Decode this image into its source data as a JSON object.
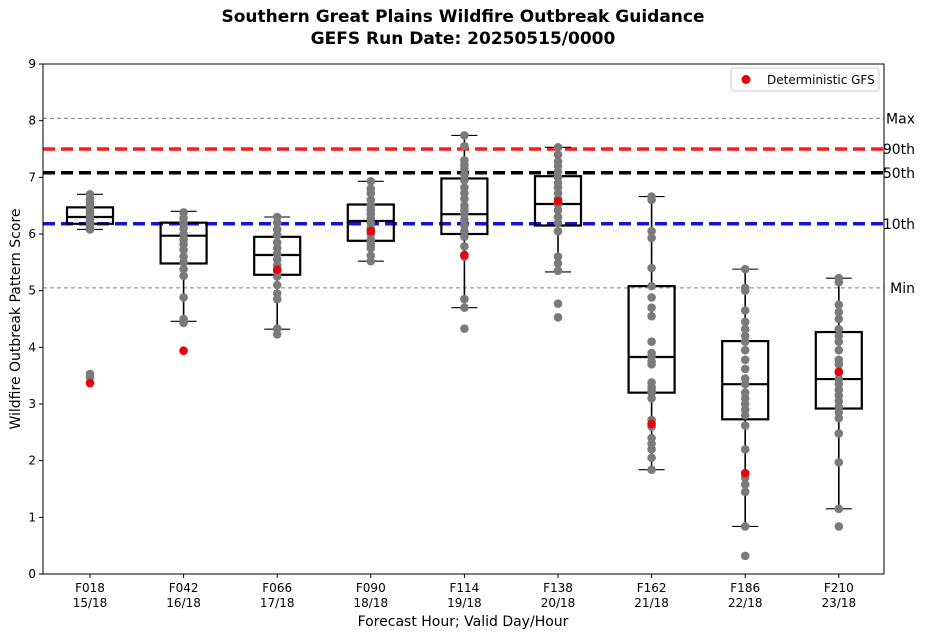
{
  "chart_data": {
    "type": "box",
    "title": "Southern Great Plains Wildfire Outbreak Guidance",
    "subtitle": "GEFS Run Date: 20250515/0000",
    "xlabel": "Forecast Hour; Valid Day/Hour",
    "ylabel": "Wildfire Outbreak Pattern Score",
    "ylim": [
      0,
      9
    ],
    "yticks": [
      "0",
      "1",
      "2",
      "3",
      "4",
      "5",
      "6",
      "7",
      "8",
      "9"
    ],
    "grid": false,
    "legend": {
      "placement": "top-right",
      "entries": [
        {
          "label": "Deterministic GFS",
          "color": "#e8000b"
        }
      ]
    },
    "categories": [
      {
        "hour": "F018",
        "valid": "15/18"
      },
      {
        "hour": "F042",
        "valid": "16/18"
      },
      {
        "hour": "F066",
        "valid": "17/18"
      },
      {
        "hour": "F090",
        "valid": "18/18"
      },
      {
        "hour": "F114",
        "valid": "19/18"
      },
      {
        "hour": "F138",
        "valid": "20/18"
      },
      {
        "hour": "F162",
        "valid": "21/18"
      },
      {
        "hour": "F186",
        "valid": "22/18"
      },
      {
        "hour": "F210",
        "valid": "23/18"
      }
    ],
    "boxes": [
      {
        "whisker_low": 6.08,
        "q1": 6.18,
        "median": 6.3,
        "q3": 6.47,
        "whisker_high": 6.7
      },
      {
        "whisker_low": 4.46,
        "q1": 5.48,
        "median": 5.97,
        "q3": 6.2,
        "whisker_high": 6.4
      },
      {
        "whisker_low": 4.32,
        "q1": 5.28,
        "median": 5.63,
        "q3": 5.95,
        "whisker_high": 6.3
      },
      {
        "whisker_low": 5.52,
        "q1": 5.88,
        "median": 6.23,
        "q3": 6.52,
        "whisker_high": 6.93
      },
      {
        "whisker_low": 4.7,
        "q1": 6.0,
        "median": 6.35,
        "q3": 6.98,
        "whisker_high": 7.74
      },
      {
        "whisker_low": 5.33,
        "q1": 6.15,
        "median": 6.53,
        "q3": 7.02,
        "whisker_high": 7.53
      },
      {
        "whisker_low": 1.84,
        "q1": 3.2,
        "median": 3.83,
        "q3": 5.08,
        "whisker_high": 6.66
      },
      {
        "whisker_low": 0.84,
        "q1": 2.73,
        "median": 3.35,
        "q3": 4.11,
        "whisker_high": 5.38
      },
      {
        "whisker_low": 1.15,
        "q1": 2.92,
        "median": 3.44,
        "q3": 4.27,
        "whisker_high": 5.22
      }
    ],
    "ensemble_members": [
      [
        6.7,
        6.62,
        6.55,
        6.5,
        6.45,
        6.4,
        6.35,
        6.3,
        6.27,
        6.22,
        6.18,
        6.12,
        6.08,
        3.53,
        3.47
      ],
      [
        6.38,
        6.28,
        6.2,
        6.1,
        6.0,
        5.9,
        5.82,
        5.72,
        5.6,
        5.5,
        5.38,
        5.26,
        4.88,
        4.5,
        4.43
      ],
      [
        6.3,
        6.2,
        6.08,
        5.98,
        5.85,
        5.75,
        5.65,
        5.55,
        5.45,
        5.35,
        5.25,
        5.1,
        4.95,
        4.85,
        4.33,
        4.23
      ],
      [
        6.93,
        6.8,
        6.72,
        6.6,
        6.5,
        6.42,
        6.35,
        6.28,
        6.2,
        6.1,
        6.0,
        5.9,
        5.82,
        5.75,
        5.62,
        5.52
      ],
      [
        7.74,
        7.55,
        7.3,
        7.22,
        7.15,
        7.05,
        6.95,
        6.82,
        6.72,
        6.62,
        6.5,
        6.42,
        6.35,
        6.25,
        6.15,
        6.05,
        5.95,
        5.78,
        5.6,
        4.85,
        4.7,
        4.33
      ],
      [
        7.53,
        7.4,
        7.28,
        7.2,
        7.1,
        7.0,
        6.9,
        6.82,
        6.72,
        6.62,
        6.52,
        6.42,
        6.3,
        6.2,
        6.05,
        5.6,
        5.48,
        5.35,
        4.77,
        4.53
      ],
      [
        6.66,
        6.6,
        6.05,
        5.93,
        5.4,
        5.08,
        4.88,
        4.7,
        4.55,
        4.1,
        3.9,
        3.83,
        3.75,
        3.7,
        3.38,
        3.3,
        3.25,
        3.2,
        3.1,
        2.72,
        2.6,
        2.4,
        2.3,
        2.2,
        2.05,
        1.84
      ],
      [
        5.38,
        5.05,
        5.0,
        4.65,
        4.45,
        4.32,
        4.2,
        4.1,
        3.95,
        3.78,
        3.62,
        3.45,
        3.35,
        3.2,
        3.1,
        3.0,
        2.9,
        2.8,
        2.62,
        2.2,
        1.7,
        1.58,
        1.45,
        0.84,
        0.32
      ],
      [
        5.22,
        5.15,
        4.75,
        4.62,
        4.5,
        4.32,
        4.2,
        4.1,
        3.95,
        3.78,
        3.7,
        3.55,
        3.44,
        3.35,
        3.25,
        3.15,
        3.05,
        2.95,
        2.85,
        2.75,
        2.48,
        1.97,
        1.15,
        0.84
      ]
    ],
    "deterministic_gfs": [
      3.37,
      3.94,
      5.37,
      6.05,
      5.63,
      6.58,
      2.65,
      1.78,
      3.57
    ],
    "reference_lines": [
      {
        "label": "Max",
        "value": 8.04,
        "color": "#808080",
        "style": "thin-dashed"
      },
      {
        "label": "90th",
        "value": 7.5,
        "color": "#ff1a1a",
        "style": "thick-dashed"
      },
      {
        "label": "50th",
        "value": 7.08,
        "color": "#000000",
        "style": "thick-dashed"
      },
      {
        "label": "10th",
        "value": 6.18,
        "color": "#1414d8",
        "style": "thick-dashed"
      },
      {
        "label": "Min",
        "value": 5.05,
        "color": "#808080",
        "style": "thin-dashed"
      }
    ],
    "colors": {
      "member": "#7a7a7a",
      "deterministic": "#e8000b",
      "box": "#000000"
    }
  }
}
